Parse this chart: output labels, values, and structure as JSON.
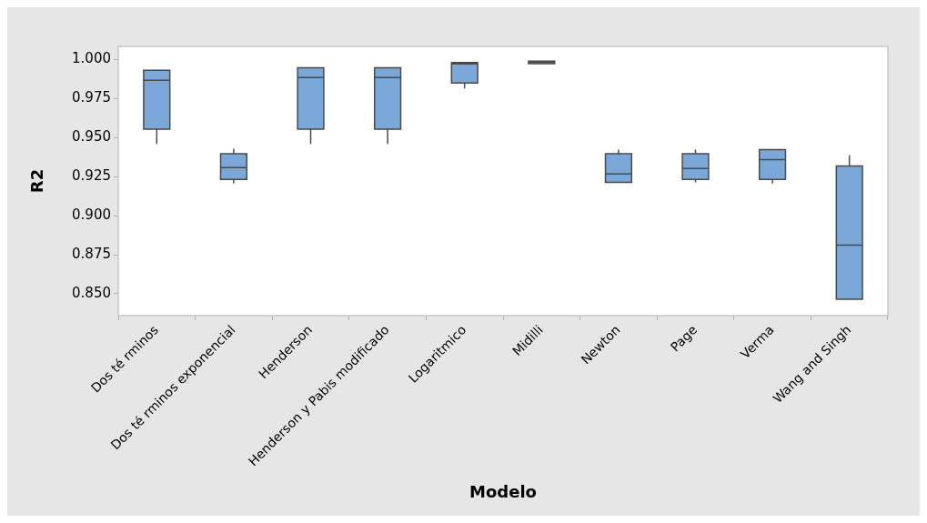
{
  "chart_data": {
    "type": "box",
    "xlabel": "Modelo",
    "ylabel": "R2",
    "color": "#7ba7d9",
    "categories": [
      "Dos té rminos",
      "Dos té rminos exponencial",
      "Henderson",
      "Henderson y Pabis modificado",
      "Logaritmico",
      "Midilli",
      "Newton",
      "Page",
      "Verma",
      "Wang and Singh"
    ],
    "boxes": [
      {
        "low": 0.946,
        "q1": 0.9555,
        "median": 0.9868,
        "q3": 0.9932,
        "high": 0.9932
      },
      {
        "low": 0.9206,
        "q1": 0.9232,
        "median": 0.9308,
        "q3": 0.9397,
        "high": 0.943
      },
      {
        "low": 0.946,
        "q1": 0.9555,
        "median": 0.9886,
        "q3": 0.9948,
        "high": 0.9948
      },
      {
        "low": 0.946,
        "q1": 0.9555,
        "median": 0.9886,
        "q3": 0.9948,
        "high": 0.9948
      },
      {
        "low": 0.9816,
        "q1": 0.985,
        "median": 0.9973,
        "q3": 0.9982,
        "high": 0.9982
      },
      {
        "low": 0.9973,
        "q1": 0.9975,
        "median": 0.9985,
        "q3": 0.999,
        "high": 0.9991
      },
      {
        "low": 0.9214,
        "q1": 0.9214,
        "median": 0.9267,
        "q3": 0.9397,
        "high": 0.9424
      },
      {
        "low": 0.9214,
        "q1": 0.9232,
        "median": 0.9302,
        "q3": 0.9397,
        "high": 0.9424
      },
      {
        "low": 0.9206,
        "q1": 0.9232,
        "median": 0.936,
        "q3": 0.9424,
        "high": 0.9424
      },
      {
        "low": 0.8463,
        "q1": 0.8465,
        "median": 0.8811,
        "q3": 0.9319,
        "high": 0.9387
      }
    ],
    "ylim": [
      0.836,
      1.0085
    ],
    "yticks": [
      {
        "value": 0.85,
        "label": "0.850"
      },
      {
        "value": 0.875,
        "label": "0.875"
      },
      {
        "value": 0.9,
        "label": "0.900"
      },
      {
        "value": 0.925,
        "label": "0.925"
      },
      {
        "value": 0.95,
        "label": "0.950"
      },
      {
        "value": 0.975,
        "label": "0.975"
      },
      {
        "value": 1,
        "label": "1.000"
      }
    ]
  }
}
